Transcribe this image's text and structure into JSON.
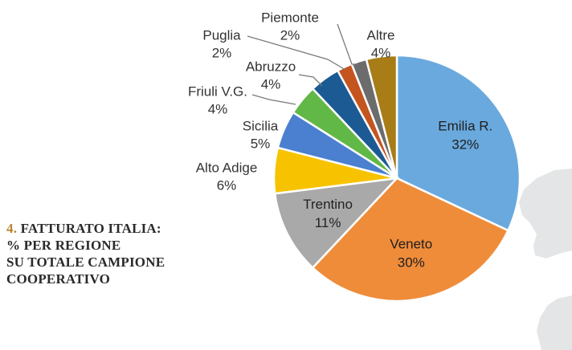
{
  "caption": {
    "number": "4.",
    "line1": "FATTURATO ITALIA:",
    "line2": "% PER REGIONE",
    "line3": "SU TOTALE CAMPIONE",
    "line4": "COOPERATIVO"
  },
  "chart_data": {
    "type": "pie",
    "start_angle_deg": 0,
    "direction": "clockwise",
    "slices": [
      {
        "label": "Emilia R.",
        "value": 32,
        "value_label": "32%",
        "color": "#6aa9dd",
        "label_position": "inside"
      },
      {
        "label": "Veneto",
        "value": 30,
        "value_label": "30%",
        "color": "#ef8c3a",
        "label_position": "inside"
      },
      {
        "label": "Trentino",
        "value": 11,
        "value_label": "11%",
        "color": "#a9a9a9",
        "label_position": "inside"
      },
      {
        "label": "Alto Adige",
        "value": 6,
        "value_label": "6%",
        "color": "#f7c300",
        "label_position": "outside"
      },
      {
        "label": "Sicilia",
        "value": 5,
        "value_label": "5%",
        "color": "#4b7fcf",
        "label_position": "outside"
      },
      {
        "label": "Friuli V.G.",
        "value": 4,
        "value_label": "4%",
        "color": "#62b846",
        "label_position": "outside"
      },
      {
        "label": "Abruzzo",
        "value": 4,
        "value_label": "4%",
        "color": "#1c5a94",
        "label_position": "outside"
      },
      {
        "label": "Puglia",
        "value": 2,
        "value_label": "2%",
        "color": "#c4551f",
        "label_position": "outside"
      },
      {
        "label": "Piemonte",
        "value": 2,
        "value_label": "2%",
        "color": "#6c6c6c",
        "label_position": "outside"
      },
      {
        "label": "Altre",
        "value": 4,
        "value_label": "4%",
        "color": "#a87c17",
        "label_position": "outside"
      }
    ]
  }
}
